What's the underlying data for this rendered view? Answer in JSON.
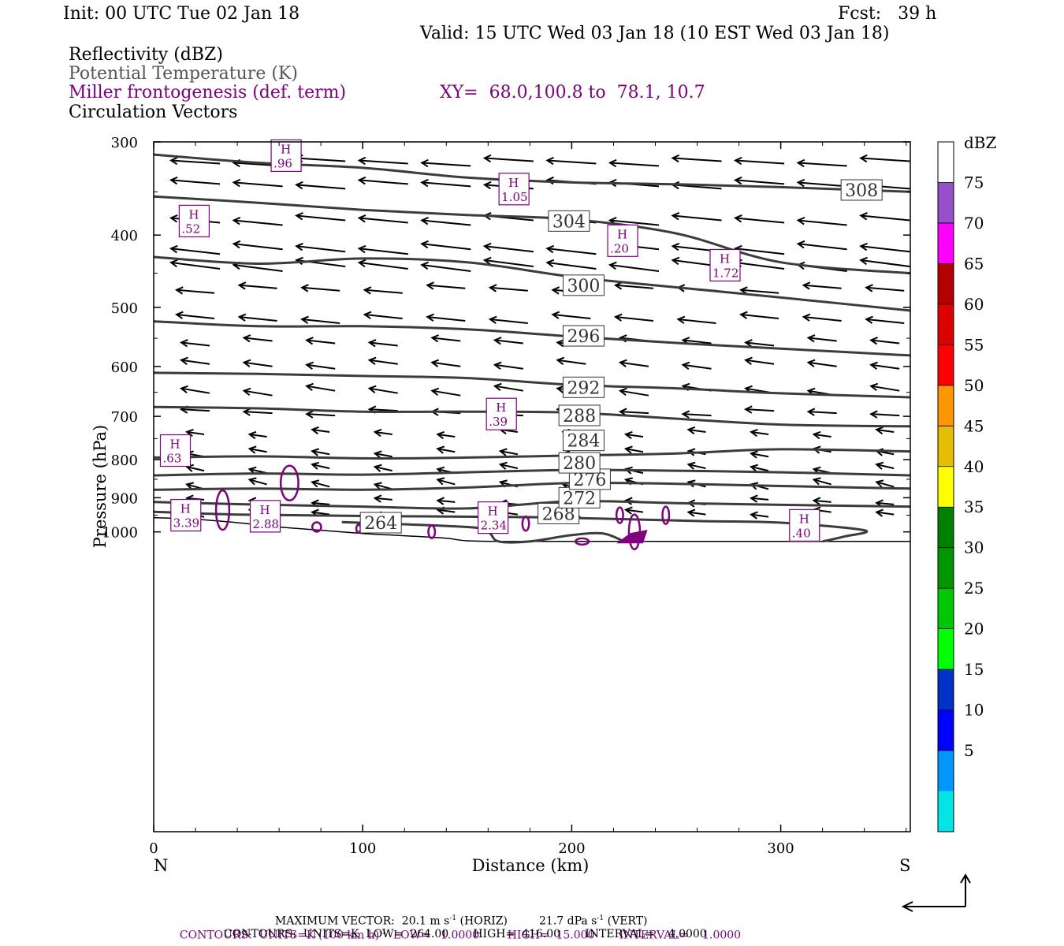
{
  "header": {
    "init": "Init: 00 UTC Tue 02 Jan 18",
    "fcst": "Fcst:   39 h",
    "valid": "Valid: 15 UTC Wed 03 Jan 18 (10 EST Wed 03 Jan 18)",
    "field1": "Reflectivity (dBZ)",
    "field2": "Potential Temperature (K)",
    "field3": "Miller frontogenesis (def. term)",
    "xy": "XY=  68.0,100.8 to  78.1, 10.7",
    "field4": "Circulation Vectors"
  },
  "colors": {
    "theta": "#3c3c3c",
    "fronto": "#800080",
    "vector": "#000000"
  },
  "chart_data": {
    "type": "line",
    "xlabel": "Distance (km)",
    "ylabel": "Pressure (hPa)",
    "x_end_left": "N",
    "x_end_right": "S",
    "xlim": [
      0,
      362
    ],
    "ylim": [
      1040,
      300
    ],
    "y_scale": "log-pressure",
    "x_ticks": [
      0,
      100,
      200,
      300
    ],
    "y_ticks": [
      300,
      400,
      500,
      600,
      700,
      800,
      900,
      1000
    ],
    "theta_series": [
      {
        "name": "264",
        "x": [
          90,
          150,
          160,
          165,
          180,
          200,
          215,
          225
        ],
        "y": [
          970,
          985,
          1000,
          1030,
          1030,
          1010,
          1005,
          1030
        ],
        "label_at": [
          100,
          972
        ]
      },
      {
        "name": "268",
        "x": [
          0,
          40,
          100,
          170,
          200,
          260,
          300,
          340,
          330,
          320
        ],
        "y": [
          940,
          948,
          952,
          955,
          958,
          967,
          972,
          995,
          1015,
          1030
        ],
        "label_at": [
          185,
          945
        ]
      },
      {
        "name": "272",
        "x": [
          0,
          40,
          100,
          150,
          200,
          250,
          300,
          362
        ],
        "y": [
          912,
          918,
          925,
          930,
          910,
          915,
          920,
          925
        ],
        "label_at": [
          195,
          900
        ]
      },
      {
        "name": "276",
        "x": [
          0,
          50,
          100,
          150,
          200,
          250,
          300,
          362
        ],
        "y": [
          878,
          875,
          878,
          872,
          860,
          862,
          868,
          875
        ],
        "label_at": [
          200,
          850
        ]
      },
      {
        "name": "280",
        "x": [
          0,
          50,
          100,
          150,
          200,
          250,
          300,
          362
        ],
        "y": [
          840,
          835,
          838,
          832,
          826,
          828,
          832,
          840
        ],
        "label_at": [
          195,
          808
        ]
      },
      {
        "name": "284",
        "x": [
          0,
          50,
          100,
          150,
          200,
          250,
          300,
          362
        ],
        "y": [
          795,
          792,
          797,
          795,
          790,
          785,
          775,
          780
        ],
        "label_at": [
          197,
          754
        ]
      },
      {
        "name": "288",
        "x": [
          0,
          50,
          100,
          150,
          200,
          250,
          300,
          362
        ],
        "y": [
          680,
          683,
          690,
          690,
          692,
          705,
          718,
          722
        ],
        "label_at": [
          195,
          698
        ]
      },
      {
        "name": "292",
        "x": [
          0,
          50,
          100,
          150,
          200,
          250,
          300,
          362
        ],
        "y": [
          612,
          614,
          618,
          622,
          635,
          642,
          652,
          660
        ],
        "label_at": [
          197,
          640
        ]
      },
      {
        "name": "296",
        "x": [
          0,
          50,
          100,
          150,
          200,
          250,
          300,
          362
        ],
        "y": [
          522,
          530,
          530,
          535,
          547,
          558,
          568,
          580
        ],
        "label_at": [
          197,
          546
        ]
      },
      {
        "name": "300",
        "x": [
          0,
          50,
          100,
          150,
          200,
          250,
          300,
          362
        ],
        "y": [
          428,
          437,
          430,
          435,
          455,
          470,
          485,
          505
        ],
        "label_at": [
          197,
          467
        ]
      },
      {
        "name": "304",
        "x": [
          0,
          50,
          100,
          150,
          200,
          250,
          300,
          362
        ],
        "y": [
          355,
          362,
          370,
          376,
          381,
          398,
          435,
          450
        ],
        "label_at": [
          190,
          383
        ]
      },
      {
        "name": "308",
        "x": [
          0,
          50,
          100,
          150,
          200,
          250,
          300,
          362
        ],
        "y": [
          312,
          320,
          325,
          335,
          340,
          342,
          345,
          350
        ],
        "label_at": [
          330,
          348
        ]
      }
    ],
    "fronto_highs": [
      {
        "label": "H",
        "value": ".96",
        "x": 63,
        "y": 313
      },
      {
        "label": "H",
        "value": "1.05",
        "x": 172,
        "y": 347
      },
      {
        "label": "H",
        "value": ".52",
        "x": 19,
        "y": 383
      },
      {
        "label": "H",
        "value": ".20",
        "x": 224,
        "y": 407
      },
      {
        "label": "H",
        "value": "1.72",
        "x": 273,
        "y": 439
      },
      {
        "label": "H",
        "value": ".39",
        "x": 166,
        "y": 695
      },
      {
        "label": "H",
        "value": ".63",
        "x": 10,
        "y": 778
      },
      {
        "label": "H",
        "value": "3.39",
        "x": 15,
        "y": 950
      },
      {
        "label": "H",
        "value": "2.88",
        "x": 53,
        "y": 953
      },
      {
        "label": "H",
        "value": "2.34",
        "x": 162,
        "y": 957
      },
      {
        "label": "H",
        "value": ".40",
        "x": 311,
        "y": 980
      }
    ],
    "colorbar": {
      "unit": "dBZ",
      "levels": [
        5,
        10,
        15,
        20,
        25,
        30,
        35,
        40,
        45,
        50,
        55,
        60,
        65,
        70,
        75
      ],
      "colors": [
        "#00e5e5",
        "#0096ff",
        "#0000ff",
        "#0032c8",
        "#00ff00",
        "#00c800",
        "#009600",
        "#008000",
        "#ffff00",
        "#e6be00",
        "#ff9600",
        "#ff0000",
        "#dc0000",
        "#b40000",
        "#ff00ff",
        "#9650c8"
      ]
    }
  },
  "footer": {
    "max_vector_a": "MAXIMUM VECTOR:  20.1 m s",
    "max_vector_b": " (HORIZ)         21.7 dPa s",
    "max_vector_c": " (VERT)",
    "contours_purple_a": "CONTOURS:  UNITS=K (100 km h)",
    "contours_purple_b": "  LOW=   1.0000        HIGH=  15.000       INTERVAL=    1.0000",
    "contours_black": "CONTOURS:  UNITS=K  LOW=  264.00       HIGH=  416.00       INTERVAL=    4.0000",
    "exp": "-1"
  }
}
